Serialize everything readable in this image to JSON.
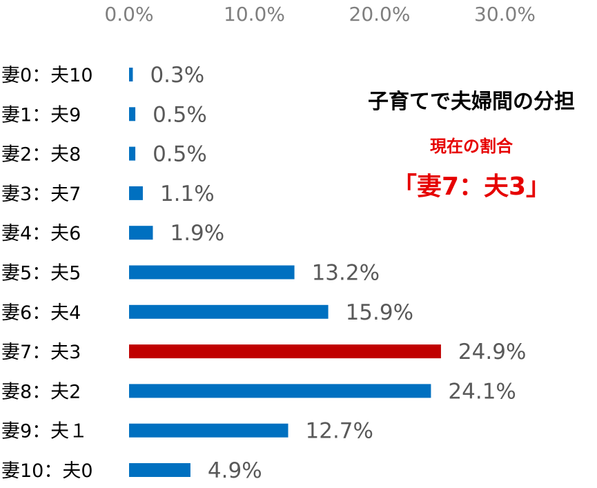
{
  "chart_data": {
    "type": "bar",
    "orientation": "horizontal",
    "categories": [
      "妻0：夫10",
      "妻1：夫9",
      "妻2：夫8",
      "妻3：夫7",
      "妻4：夫6",
      "妻5：夫5",
      "妻6：夫4",
      "妻7：夫3",
      "妻8：夫2",
      "妻9：夫１",
      "妻10：夫0"
    ],
    "values": [
      0.3,
      0.5,
      0.5,
      1.1,
      1.9,
      13.2,
      15.9,
      24.9,
      24.1,
      12.7,
      4.9
    ],
    "value_labels": [
      "0.3%",
      "0.5%",
      "0.5%",
      "1.1%",
      "1.9%",
      "13.2%",
      "15.9%",
      "24.9%",
      "24.1%",
      "12.7%",
      "4.9%"
    ],
    "xaxis_position": "top",
    "xticks": [
      0,
      10,
      20,
      30
    ],
    "xtick_labels": [
      "0.0%",
      "10.0%",
      "20.0%",
      "30.0%"
    ],
    "xlim": [
      0,
      30
    ],
    "grid": false,
    "legend": "none",
    "highlight_index": 7,
    "colors": {
      "bar": "#0070c0",
      "highlight": "#c00000",
      "annotation_red": "#e60000"
    },
    "annotation": {
      "title": "子育てで夫婦間の分担",
      "subtitle": "現在の割合",
      "ratio": "「妻7：夫3」"
    }
  }
}
